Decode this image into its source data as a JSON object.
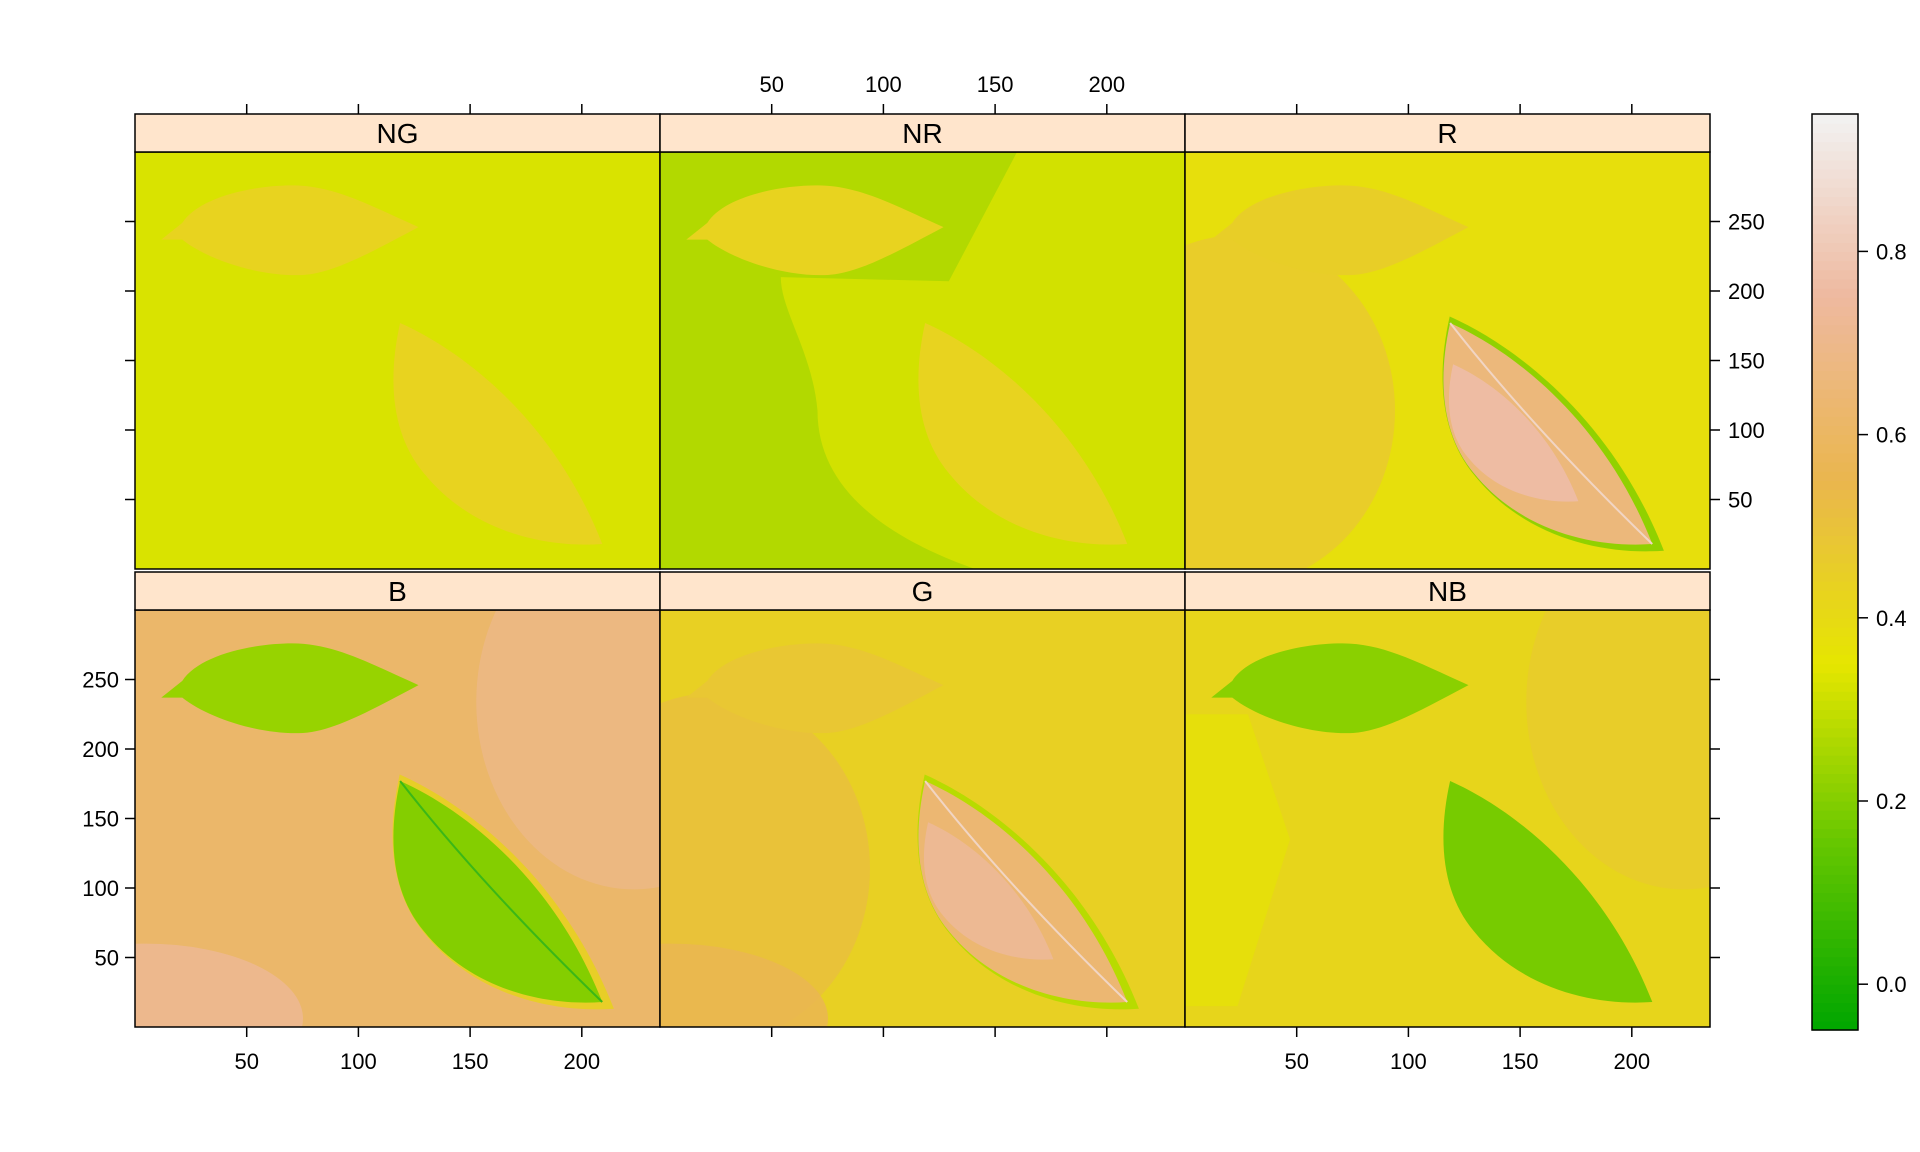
{
  "chart_data": {
    "type": "heatmap",
    "title": "",
    "xlabel": "",
    "ylabel": "",
    "layout": {
      "columns": 3,
      "rows": 2
    },
    "xlim": [
      0,
      235
    ],
    "ylim": [
      0,
      300
    ],
    "x_ticks": [
      50,
      100,
      150,
      200
    ],
    "y_ticks": [
      50,
      100,
      150,
      200,
      250
    ],
    "grid": false,
    "colorkey": {
      "position": "right",
      "range": [
        -0.05,
        0.95
      ],
      "ticks": [
        "0.0",
        "0.2",
        "0.4",
        "0.6",
        "0.8"
      ],
      "tick_values": [
        0.0,
        0.2,
        0.4,
        0.6,
        0.8
      ],
      "palette": [
        "#00A600",
        "#63C600",
        "#E6E600",
        "#EAB64E",
        "#EEB99F",
        "#F2F2F2"
      ]
    },
    "panels": [
      {
        "name": "NG",
        "row": "top",
        "col": 1,
        "background": 0.33,
        "regions": [
          {
            "shape": "leaf_horizontal",
            "value": 0.43
          },
          {
            "shape": "leaf_diagonal",
            "value": 0.43
          }
        ]
      },
      {
        "name": "NR",
        "row": "top",
        "col": 2,
        "background": 0.27,
        "regions": [
          {
            "shape": "shadow_band",
            "value": 0.32
          },
          {
            "shape": "leaf_horizontal",
            "value": 0.43
          },
          {
            "shape": "leaf_diagonal",
            "value": 0.43
          }
        ]
      },
      {
        "name": "R",
        "row": "top",
        "col": 3,
        "background": 0.38,
        "regions": [
          {
            "shape": "left_glow",
            "value": 0.48
          },
          {
            "shape": "leaf_horizontal",
            "value": 0.45
          },
          {
            "shape": "leaf_diagonal_rim",
            "value": 0.22
          },
          {
            "shape": "leaf_diagonal",
            "value": 0.66
          },
          {
            "shape": "leaf_diagonal_core",
            "value": 0.76
          }
        ]
      },
      {
        "name": "B",
        "row": "bottom",
        "col": 1,
        "background": 0.62,
        "regions": [
          {
            "shape": "right_glow",
            "value": 0.7
          },
          {
            "shape": "bottom_left_glow",
            "value": 0.72
          },
          {
            "shape": "leaf_horizontal",
            "value": 0.23
          },
          {
            "shape": "leaf_diagonal_rim",
            "value": 0.45
          },
          {
            "shape": "leaf_diagonal",
            "value": 0.2
          }
        ]
      },
      {
        "name": "G",
        "row": "bottom",
        "col": 2,
        "background": 0.44,
        "regions": [
          {
            "shape": "left_glow",
            "value": 0.52
          },
          {
            "shape": "bottom_left_glow",
            "value": 0.56
          },
          {
            "shape": "leaf_horizontal",
            "value": 0.48
          },
          {
            "shape": "leaf_diagonal_rim",
            "value": 0.28
          },
          {
            "shape": "leaf_diagonal",
            "value": 0.64
          },
          {
            "shape": "leaf_diagonal_core",
            "value": 0.72
          }
        ]
      },
      {
        "name": "NB",
        "row": "bottom",
        "col": 3,
        "background": 0.42,
        "regions": [
          {
            "shape": "left_strip",
            "value": 0.37
          },
          {
            "shape": "right_glow",
            "value": 0.47
          },
          {
            "shape": "leaf_horizontal",
            "value": 0.21
          },
          {
            "shape": "leaf_diagonal",
            "value": 0.18
          }
        ]
      }
    ]
  }
}
